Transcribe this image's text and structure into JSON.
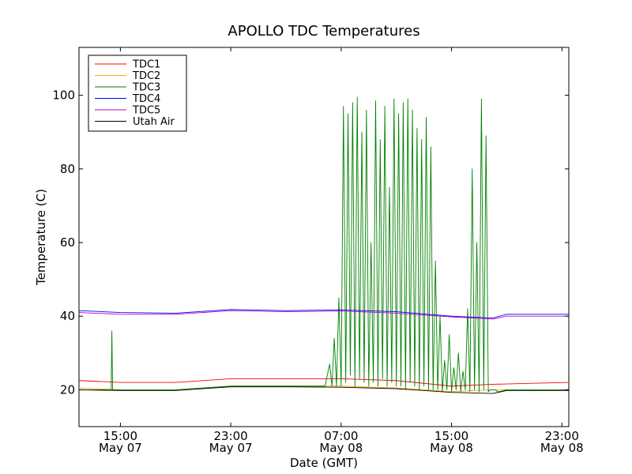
{
  "chart_data": {
    "type": "line",
    "title": "APOLLO TDC Temperatures",
    "xlabel": "Date (GMT)",
    "ylabel": "Temperature (C)",
    "xlim": [
      "2012-05-07 12:00",
      "2012-05-08 23:30"
    ],
    "ylim": [
      10,
      113
    ],
    "grid": false,
    "legend_position": "top-left",
    "x_ticks": [
      {
        "x": "2012-05-07 15:00",
        "time": "15:00",
        "date": "May 07"
      },
      {
        "x": "2012-05-07 23:00",
        "time": "23:00",
        "date": "May 07"
      },
      {
        "x": "2012-05-08 07:00",
        "time": "07:00",
        "date": "May 08"
      },
      {
        "x": "2012-05-08 15:00",
        "time": "15:00",
        "date": "May 08"
      },
      {
        "x": "2012-05-08 23:00",
        "time": "23:00",
        "date": "May 08"
      }
    ],
    "y_ticks": [
      20,
      40,
      60,
      80,
      100
    ],
    "series": [
      {
        "name": "TDC1",
        "color": "#ff0000",
        "x": [
          "2012-05-07 12:00",
          "2012-05-07 15:00",
          "2012-05-07 19:00",
          "2012-05-07 23:00",
          "2012-05-08 03:00",
          "2012-05-08 07:00",
          "2012-05-08 11:00",
          "2012-05-08 15:00",
          "2012-05-08 18:00",
          "2012-05-08 23:30"
        ],
        "y": [
          22.5,
          22.0,
          22.0,
          23.0,
          23.0,
          23.0,
          22.5,
          21.0,
          21.5,
          22.0
        ]
      },
      {
        "name": "TDC2",
        "color": "#ffaa00",
        "x": [
          "2012-05-07 12:00",
          "2012-05-07 15:00",
          "2012-05-07 19:00",
          "2012-05-07 23:00",
          "2012-05-08 03:00",
          "2012-05-08 07:00",
          "2012-05-08 11:00",
          "2012-05-08 15:00",
          "2012-05-08 18:00",
          "2012-05-08 23:30"
        ],
        "y": [
          20.5,
          20.0,
          20.0,
          21.0,
          21.0,
          21.0,
          20.5,
          19.5,
          20.0,
          20.0
        ]
      },
      {
        "name": "TDC3",
        "color": "#008000",
        "x": [
          "2012-05-07 12:00",
          "2012-05-07 14:20",
          "2012-05-07 14:23",
          "2012-05-07 14:26",
          "2012-05-07 19:00",
          "2012-05-07 23:00",
          "2012-05-08 03:00",
          "2012-05-08 05:50",
          "2012-05-08 06:10",
          "2012-05-08 06:20",
          "2012-05-08 06:30",
          "2012-05-08 06:40",
          "2012-05-08 06:50",
          "2012-05-08 07:00",
          "2012-05-08 07:10",
          "2012-05-08 07:20",
          "2012-05-08 07:30",
          "2012-05-08 07:40",
          "2012-05-08 07:50",
          "2012-05-08 08:00",
          "2012-05-08 08:10",
          "2012-05-08 08:20",
          "2012-05-08 08:30",
          "2012-05-08 08:40",
          "2012-05-08 08:50",
          "2012-05-08 09:00",
          "2012-05-08 09:10",
          "2012-05-08 09:20",
          "2012-05-08 09:30",
          "2012-05-08 09:40",
          "2012-05-08 09:50",
          "2012-05-08 10:00",
          "2012-05-08 10:10",
          "2012-05-08 10:20",
          "2012-05-08 10:30",
          "2012-05-08 10:40",
          "2012-05-08 10:50",
          "2012-05-08 11:00",
          "2012-05-08 11:10",
          "2012-05-08 11:20",
          "2012-05-08 11:30",
          "2012-05-08 11:40",
          "2012-05-08 11:50",
          "2012-05-08 12:00",
          "2012-05-08 12:10",
          "2012-05-08 12:20",
          "2012-05-08 12:30",
          "2012-05-08 12:40",
          "2012-05-08 12:50",
          "2012-05-08 13:00",
          "2012-05-08 13:10",
          "2012-05-08 13:20",
          "2012-05-08 13:30",
          "2012-05-08 13:40",
          "2012-05-08 13:50",
          "2012-05-08 14:00",
          "2012-05-08 14:10",
          "2012-05-08 14:20",
          "2012-05-08 14:30",
          "2012-05-08 14:40",
          "2012-05-08 14:50",
          "2012-05-08 15:00",
          "2012-05-08 15:10",
          "2012-05-08 15:20",
          "2012-05-08 15:30",
          "2012-05-08 15:40",
          "2012-05-08 15:50",
          "2012-05-08 16:00",
          "2012-05-08 16:10",
          "2012-05-08 16:20",
          "2012-05-08 16:30",
          "2012-05-08 16:40",
          "2012-05-08 16:50",
          "2012-05-08 17:00",
          "2012-05-08 17:10",
          "2012-05-08 17:20",
          "2012-05-08 17:30",
          "2012-05-08 17:40",
          "2012-05-08 17:50",
          "2012-05-08 18:00",
          "2012-05-08 18:10",
          "2012-05-08 18:20",
          "2012-05-08 18:30",
          "2012-05-08 19:00",
          "2012-05-08 23:30"
        ],
        "y": [
          20.0,
          20.0,
          36.0,
          20.0,
          20.0,
          21.0,
          21.0,
          21.0,
          27.0,
          21.0,
          34.0,
          21.0,
          45.0,
          21.0,
          97.0,
          22.0,
          95.0,
          24.0,
          98.0,
          21.0,
          99.5,
          23.0,
          90.0,
          22.0,
          96.0,
          21.0,
          60.0,
          22.0,
          98.5,
          21.0,
          88.0,
          23.0,
          97.0,
          21.0,
          75.0,
          22.0,
          99.0,
          21.0,
          95.0,
          21.0,
          98.0,
          20.0,
          99.0,
          22.0,
          96.0,
          21.0,
          91.0,
          20.0,
          88.0,
          21.0,
          94.0,
          20.0,
          86.0,
          20.0,
          55.0,
          20.0,
          40.0,
          19.5,
          28.0,
          20.0,
          35.0,
          19.5,
          26.0,
          20.0,
          30.0,
          19.5,
          25.0,
          20.0,
          42.0,
          19.5,
          80.0,
          20.0,
          60.0,
          19.5,
          99.0,
          20.0,
          89.0,
          19.5,
          20.0,
          20.0,
          20.0,
          19.5,
          19.5,
          20.0,
          20.0
        ]
      },
      {
        "name": "TDC4",
        "color": "#0000ff",
        "x": [
          "2012-05-07 12:00",
          "2012-05-07 15:00",
          "2012-05-07 19:00",
          "2012-05-07 23:00",
          "2012-05-08 03:00",
          "2012-05-08 07:00",
          "2012-05-08 11:00",
          "2012-05-08 15:00",
          "2012-05-08 18:00",
          "2012-05-08 19:00",
          "2012-05-08 23:30"
        ],
        "y": [
          41.5,
          41.0,
          40.8,
          41.8,
          41.5,
          41.7,
          41.2,
          40.0,
          39.5,
          40.5,
          40.5
        ]
      },
      {
        "name": "TDC5",
        "color": "#bf00bf",
        "x": [
          "2012-05-07 12:00",
          "2012-05-07 15:00",
          "2012-05-07 19:00",
          "2012-05-07 23:00",
          "2012-05-08 03:00",
          "2012-05-08 07:00",
          "2012-05-08 11:00",
          "2012-05-08 15:00",
          "2012-05-08 18:00",
          "2012-05-08 19:00",
          "2012-05-08 23:30"
        ],
        "y": [
          41.0,
          40.5,
          40.5,
          41.5,
          41.2,
          41.4,
          40.8,
          39.8,
          39.2,
          40.0,
          40.0
        ]
      },
      {
        "name": "Utah Air",
        "color": "#000000",
        "x": [
          "2012-05-07 12:00",
          "2012-05-07 15:00",
          "2012-05-07 19:00",
          "2012-05-07 23:00",
          "2012-05-08 03:00",
          "2012-05-08 07:00",
          "2012-05-08 11:00",
          "2012-05-08 15:00",
          "2012-05-08 18:00",
          "2012-05-08 19:00",
          "2012-05-08 23:30"
        ],
        "y": [
          20.0,
          19.8,
          19.8,
          20.8,
          20.8,
          20.7,
          20.3,
          19.3,
          19.0,
          19.8,
          19.8
        ]
      }
    ]
  }
}
